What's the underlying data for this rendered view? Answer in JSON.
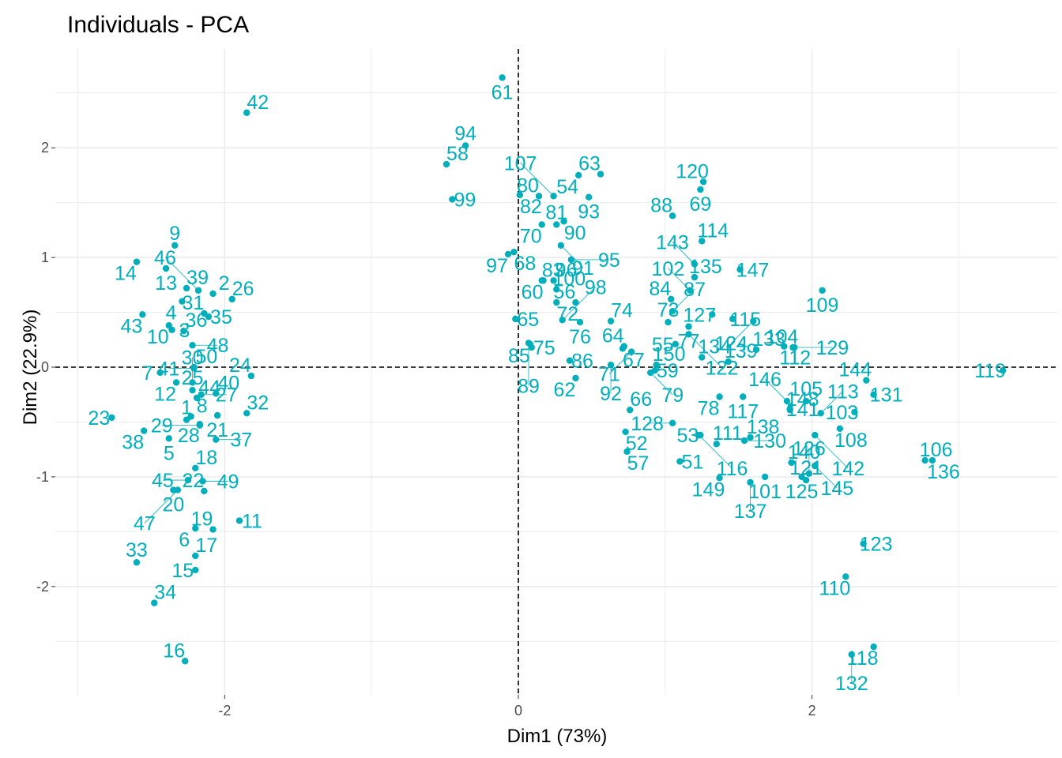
{
  "chart_data": {
    "type": "scatter",
    "title": "Individuals - PCA",
    "xlabel": "Dim1 (73%)",
    "ylabel": "Dim2 (22.9%)",
    "xlim": [
      -3.1,
      3.55
    ],
    "ylim": [
      -2.95,
      2.85
    ],
    "xticks": [
      -2,
      0,
      2
    ],
    "yticks": [
      -2,
      -1,
      0,
      1,
      2
    ],
    "grid": true,
    "point_color": "#00AFBB",
    "reference_lines": {
      "x": 0,
      "y": 0,
      "style": "dashed"
    },
    "points": [
      {
        "label": "1",
        "x": -2.26,
        "y": -0.48
      },
      {
        "label": "2",
        "x": -2.08,
        "y": 0.67
      },
      {
        "label": "3",
        "x": -2.36,
        "y": 0.34
      },
      {
        "label": "4",
        "x": -2.29,
        "y": 0.6
      },
      {
        "label": "5",
        "x": -2.38,
        "y": -0.65
      },
      {
        "label": "6",
        "x": -2.2,
        "y": -1.47
      },
      {
        "label": "7",
        "x": -2.44,
        "y": -0.05
      },
      {
        "label": "8",
        "x": -2.23,
        "y": -0.45
      },
      {
        "label": "9",
        "x": -2.34,
        "y": 1.11
      },
      {
        "label": "10",
        "x": -2.38,
        "y": 0.38
      },
      {
        "label": "11",
        "x": -1.9,
        "y": -1.4
      },
      {
        "label": "12",
        "x": -2.33,
        "y": -0.14
      },
      {
        "label": "13",
        "x": -2.4,
        "y": 0.9
      },
      {
        "label": "14",
        "x": -2.6,
        "y": 0.96
      },
      {
        "label": "15",
        "x": -2.2,
        "y": -1.85
      },
      {
        "label": "16",
        "x": -2.27,
        "y": -2.68
      },
      {
        "label": "17",
        "x": -2.2,
        "y": -1.72
      },
      {
        "label": "18",
        "x": -2.2,
        "y": -0.92
      },
      {
        "label": "19",
        "x": -2.08,
        "y": -1.48
      },
      {
        "label": "20",
        "x": -2.35,
        "y": -1.12
      },
      {
        "label": "21",
        "x": -2.05,
        "y": -0.44
      },
      {
        "label": "22",
        "x": -2.14,
        "y": -1.13
      },
      {
        "label": "23",
        "x": -2.77,
        "y": -0.46
      },
      {
        "label": "24",
        "x": -1.82,
        "y": -0.08
      },
      {
        "label": "25",
        "x": -2.22,
        "y": -0.21
      },
      {
        "label": "26",
        "x": -1.95,
        "y": 0.62
      },
      {
        "label": "27",
        "x": -2.16,
        "y": -0.25
      },
      {
        "label": "28",
        "x": -2.17,
        "y": -0.52
      },
      {
        "label": "29",
        "x": -2.17,
        "y": -0.53
      },
      {
        "label": "30",
        "x": -2.22,
        "y": -0.14
      },
      {
        "label": "31",
        "x": -2.14,
        "y": 0.49
      },
      {
        "label": "32",
        "x": -1.85,
        "y": -0.42
      },
      {
        "label": "33",
        "x": -2.6,
        "y": -1.78
      },
      {
        "label": "34",
        "x": -2.48,
        "y": -2.15
      },
      {
        "label": "35",
        "x": -2.11,
        "y": 0.46
      },
      {
        "label": "36",
        "x": -2.28,
        "y": 0.33
      },
      {
        "label": "37",
        "x": -2.06,
        "y": -0.66
      },
      {
        "label": "38",
        "x": -2.55,
        "y": -0.58
      },
      {
        "label": "39",
        "x": -2.26,
        "y": 0.72
      },
      {
        "label": "40",
        "x": -2.06,
        "y": -0.24
      },
      {
        "label": "41",
        "x": -2.21,
        "y": -0.01
      },
      {
        "label": "42",
        "x": -1.85,
        "y": 2.32
      },
      {
        "label": "43",
        "x": -2.56,
        "y": 0.48
      },
      {
        "label": "44",
        "x": -2.19,
        "y": -0.28
      },
      {
        "label": "45",
        "x": -2.25,
        "y": -1.03
      },
      {
        "label": "46",
        "x": -2.18,
        "y": 0.7
      },
      {
        "label": "47",
        "x": -2.32,
        "y": -1.12
      },
      {
        "label": "48",
        "x": -2.22,
        "y": 0.2
      },
      {
        "label": "49",
        "x": -2.15,
        "y": -1.04
      },
      {
        "label": "50",
        "x": -2.21,
        "y": 0.0
      },
      {
        "label": "51",
        "x": 1.1,
        "y": -0.86
      },
      {
        "label": "52",
        "x": 0.73,
        "y": -0.59
      },
      {
        "label": "53",
        "x": 1.24,
        "y": -0.62
      },
      {
        "label": "54",
        "x": 0.41,
        "y": 1.75
      },
      {
        "label": "55",
        "x": 1.07,
        "y": 0.21
      },
      {
        "label": "56",
        "x": 0.39,
        "y": 0.59
      },
      {
        "label": "57",
        "x": 0.74,
        "y": -0.77
      },
      {
        "label": "58",
        "x": -0.49,
        "y": 1.85
      },
      {
        "label": "59",
        "x": 0.93,
        "y": -0.03
      },
      {
        "label": "60",
        "x": 0.17,
        "y": 0.79
      },
      {
        "label": "61",
        "x": -0.11,
        "y": 2.64
      },
      {
        "label": "62",
        "x": 0.39,
        "y": -0.1
      },
      {
        "label": "63",
        "x": 0.56,
        "y": 1.76
      },
      {
        "label": "64",
        "x": 0.72,
        "y": 0.19
      },
      {
        "label": "65",
        "x": -0.02,
        "y": 0.44
      },
      {
        "label": "66",
        "x": 0.76,
        "y": -0.39
      },
      {
        "label": "67",
        "x": 0.71,
        "y": 0.17
      },
      {
        "label": "68",
        "x": -0.03,
        "y": 1.05
      },
      {
        "label": "69",
        "x": 1.24,
        "y": 1.62
      },
      {
        "label": "70",
        "x": 0.16,
        "y": 1.3
      },
      {
        "label": "71",
        "x": 0.77,
        "y": 0.14
      },
      {
        "label": "72",
        "x": 0.26,
        "y": 0.59
      },
      {
        "label": "73",
        "x": 1.02,
        "y": 0.41
      },
      {
        "label": "74",
        "x": 0.63,
        "y": 0.42
      },
      {
        "label": "75",
        "x": 0.09,
        "y": 0.18
      },
      {
        "label": "76",
        "x": 0.42,
        "y": 0.41
      },
      {
        "label": "77",
        "x": 1.16,
        "y": 0.37
      },
      {
        "label": "78",
        "x": 1.37,
        "y": -0.27
      },
      {
        "label": "79",
        "x": 0.9,
        "y": -0.05
      },
      {
        "label": "80",
        "x": 0.14,
        "y": 1.56
      },
      {
        "label": "81",
        "x": 0.26,
        "y": 1.3
      },
      {
        "label": "82",
        "x": 0.01,
        "y": 1.57
      },
      {
        "label": "83",
        "x": 0.16,
        "y": 0.79
      },
      {
        "label": "84",
        "x": 1.04,
        "y": 0.62
      },
      {
        "label": "85",
        "x": 0.08,
        "y": 0.21
      },
      {
        "label": "86",
        "x": 0.35,
        "y": 0.06
      },
      {
        "label": "87",
        "x": 1.05,
        "y": 0.51
      },
      {
        "label": "88",
        "x": 1.05,
        "y": 1.38
      },
      {
        "label": "89",
        "x": 0.07,
        "y": 0.22
      },
      {
        "label": "90",
        "x": 0.31,
        "y": 1.33
      },
      {
        "label": "91",
        "x": 0.29,
        "y": 1.11
      },
      {
        "label": "92",
        "x": 0.63,
        "y": 0.02
      },
      {
        "label": "93",
        "x": 0.48,
        "y": 1.55
      },
      {
        "label": "94",
        "x": -0.36,
        "y": 2.02
      },
      {
        "label": "95",
        "x": 0.36,
        "y": 0.98
      },
      {
        "label": "96",
        "x": 0.24,
        "y": 0.79
      },
      {
        "label": "97",
        "x": -0.07,
        "y": 1.03
      },
      {
        "label": "98",
        "x": 0.3,
        "y": 0.43
      },
      {
        "label": "99",
        "x": -0.45,
        "y": 1.53
      },
      {
        "label": "100",
        "x": 0.26,
        "y": 0.71
      },
      {
        "label": "101",
        "x": 1.68,
        "y": -1.0
      },
      {
        "label": "102",
        "x": 1.17,
        "y": 0.7
      },
      {
        "label": "103",
        "x": 2.29,
        "y": -0.41
      },
      {
        "label": "104",
        "x": 1.87,
        "y": 0.18
      },
      {
        "label": "105",
        "x": 1.96,
        "y": -0.31
      },
      {
        "label": "106",
        "x": 2.77,
        "y": -0.85
      },
      {
        "label": "107",
        "x": 0.24,
        "y": 1.56
      },
      {
        "label": "108",
        "x": 2.19,
        "y": -0.56
      },
      {
        "label": "109",
        "x": 2.07,
        "y": 0.7
      },
      {
        "label": "110",
        "x": 2.23,
        "y": -1.91
      },
      {
        "label": "111",
        "x": 1.35,
        "y": -0.7
      },
      {
        "label": "112",
        "x": 1.81,
        "y": 0.19
      },
      {
        "label": "113",
        "x": 2.06,
        "y": -0.42
      },
      {
        "label": "114",
        "x": 1.25,
        "y": 1.15
      },
      {
        "label": "115",
        "x": 1.46,
        "y": 0.44
      },
      {
        "label": "116",
        "x": 1.23,
        "y": -0.62
      },
      {
        "label": "117",
        "x": 1.53,
        "y": -0.27
      },
      {
        "label": "118",
        "x": 2.42,
        "y": -2.55
      },
      {
        "label": "119",
        "x": 3.3,
        "y": -0.03
      },
      {
        "label": "120",
        "x": 1.26,
        "y": 1.69
      },
      {
        "label": "121",
        "x": 1.96,
        "y": -1.03
      },
      {
        "label": "122",
        "x": 1.16,
        "y": 0.3
      },
      {
        "label": "123",
        "x": 2.35,
        "y": -1.61
      },
      {
        "label": "124",
        "x": 1.6,
        "y": 0.42
      },
      {
        "label": "125",
        "x": 1.93,
        "y": -1.0
      },
      {
        "label": "126",
        "x": 1.98,
        "y": -0.97
      },
      {
        "label": "127",
        "x": 1.32,
        "y": 0.48
      },
      {
        "label": "128",
        "x": 1.05,
        "y": -0.51
      },
      {
        "label": "129",
        "x": 1.88,
        "y": 0.18
      },
      {
        "label": "130",
        "x": 1.54,
        "y": -0.67
      },
      {
        "label": "131",
        "x": 2.42,
        "y": -0.25
      },
      {
        "label": "132",
        "x": 2.27,
        "y": -2.62
      },
      {
        "label": "133",
        "x": 1.62,
        "y": 0.16
      },
      {
        "label": "134",
        "x": 1.25,
        "y": 0.09
      },
      {
        "label": "135",
        "x": 1.2,
        "y": 0.82
      },
      {
        "label": "136",
        "x": 2.82,
        "y": -0.85
      },
      {
        "label": "137",
        "x": 1.58,
        "y": -1.05
      },
      {
        "label": "138",
        "x": 1.58,
        "y": -0.64
      },
      {
        "label": "139",
        "x": 1.43,
        "y": 0.05
      },
      {
        "label": "140",
        "x": 1.86,
        "y": -0.87
      },
      {
        "label": "141",
        "x": 1.85,
        "y": -0.38
      },
      {
        "label": "142",
        "x": 2.02,
        "y": -0.62
      },
      {
        "label": "143",
        "x": 1.2,
        "y": 0.94
      },
      {
        "label": "144",
        "x": 2.37,
        "y": -0.12
      },
      {
        "label": "145",
        "x": 2.02,
        "y": -0.9
      },
      {
        "label": "146",
        "x": 1.83,
        "y": -0.31
      },
      {
        "label": "147",
        "x": 1.51,
        "y": 0.89
      },
      {
        "label": "148",
        "x": 1.85,
        "y": -0.39
      },
      {
        "label": "149",
        "x": 1.37,
        "y": -1.01
      },
      {
        "label": "150",
        "x": 0.94,
        "y": 0.02
      }
    ]
  }
}
